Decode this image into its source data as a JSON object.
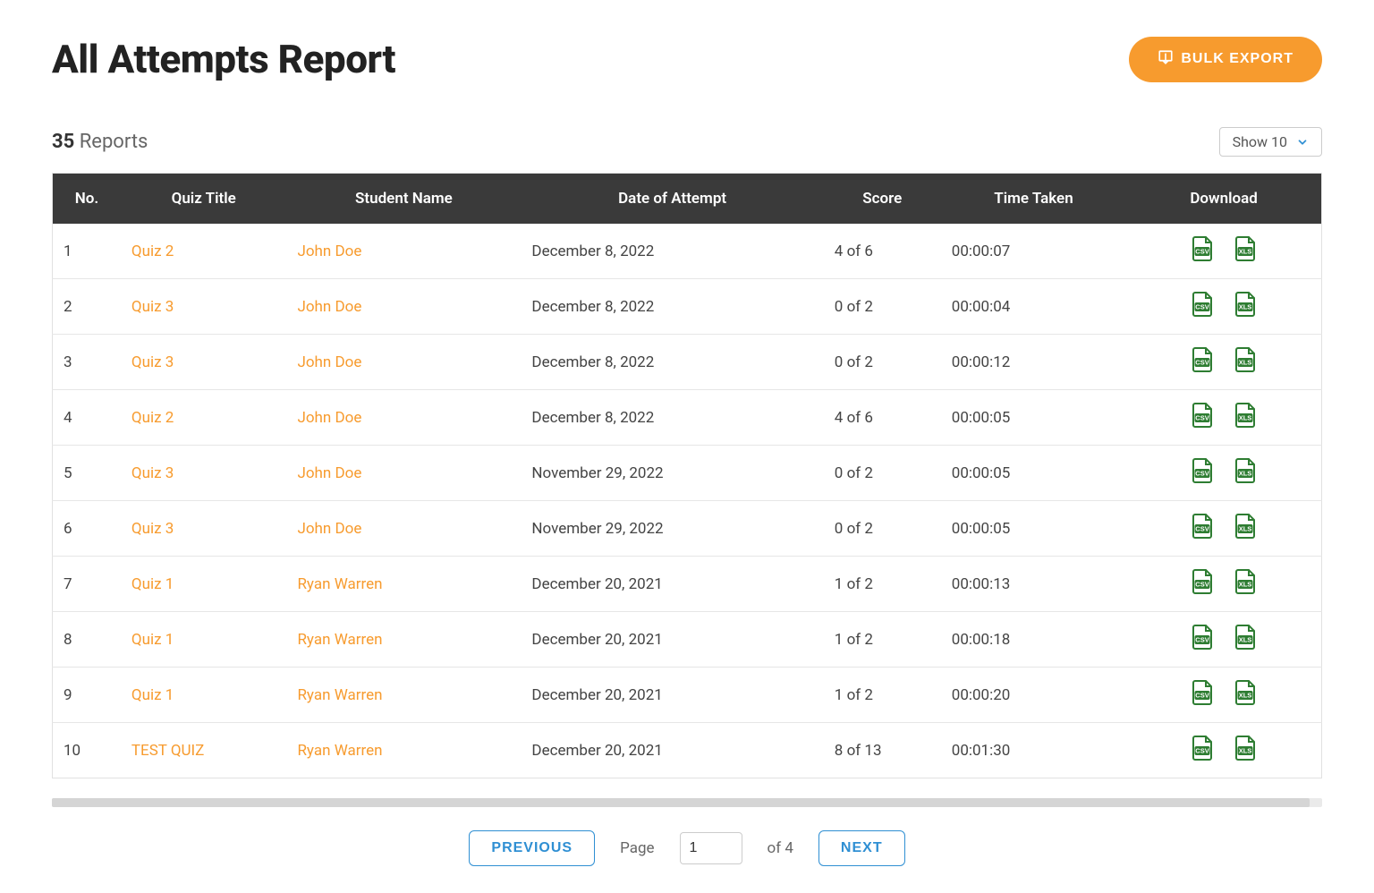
{
  "page": {
    "title": "All Attempts Report",
    "bulk_export_label": "BULK EXPORT",
    "reports_count_number": "35",
    "reports_count_label": "Reports",
    "show_selector_label": "Show 10"
  },
  "colors": {
    "accent_orange": "#f79b2e",
    "header_dark": "#3a3a3a",
    "link_blue": "#2f8fd3",
    "row_border": "#e6e6e6",
    "icon_green": "#2e7d32",
    "text_dark": "#333333",
    "text_muted": "#666666",
    "background": "#ffffff",
    "caret_blue": "#2f8fd3"
  },
  "table": {
    "columns": [
      "No.",
      "Quiz Title",
      "Student Name",
      "Date of Attempt",
      "Score",
      "Time Taken",
      "Download"
    ],
    "rows": [
      {
        "no": "1",
        "quiz": "Quiz 2",
        "student": "John Doe",
        "date": "December 8, 2022",
        "score": "4 of 6",
        "time": "00:00:07"
      },
      {
        "no": "2",
        "quiz": "Quiz 3",
        "student": "John Doe",
        "date": "December 8, 2022",
        "score": "0 of 2",
        "time": "00:00:04"
      },
      {
        "no": "3",
        "quiz": "Quiz 3",
        "student": "John Doe",
        "date": "December 8, 2022",
        "score": "0 of 2",
        "time": "00:00:12"
      },
      {
        "no": "4",
        "quiz": "Quiz 2",
        "student": "John Doe",
        "date": "December 8, 2022",
        "score": "4 of 6",
        "time": "00:00:05"
      },
      {
        "no": "5",
        "quiz": "Quiz 3",
        "student": "John Doe",
        "date": "November 29, 2022",
        "score": "0 of 2",
        "time": "00:00:05"
      },
      {
        "no": "6",
        "quiz": "Quiz 3",
        "student": "John Doe",
        "date": "November 29, 2022",
        "score": "0 of 2",
        "time": "00:00:05"
      },
      {
        "no": "7",
        "quiz": "Quiz 1",
        "student": "Ryan Warren",
        "date": "December 20, 2021",
        "score": "1 of 2",
        "time": "00:00:13"
      },
      {
        "no": "8",
        "quiz": "Quiz 1",
        "student": "Ryan Warren",
        "date": "December 20, 2021",
        "score": "1 of 2",
        "time": "00:00:18"
      },
      {
        "no": "9",
        "quiz": "Quiz 1",
        "student": "Ryan Warren",
        "date": "December 20, 2021",
        "score": "1 of 2",
        "time": "00:00:20"
      },
      {
        "no": "10",
        "quiz": "TEST QUIZ",
        "student": "Ryan Warren",
        "date": "December 20, 2021",
        "score": "8 of 13",
        "time": "00:01:30"
      }
    ]
  },
  "pagination": {
    "prev_label": "PREVIOUS",
    "next_label": "NEXT",
    "page_label": "Page",
    "current_page": "1",
    "of_label": "of 4"
  }
}
